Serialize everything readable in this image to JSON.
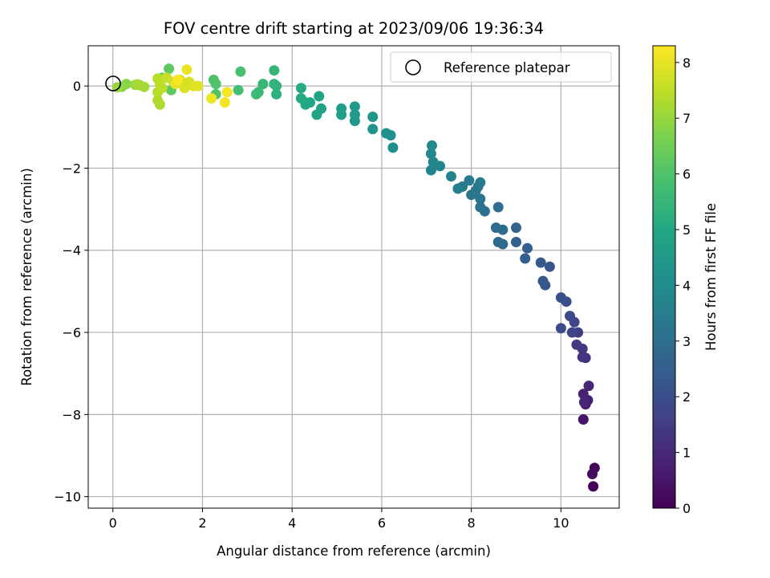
{
  "chart_data": {
    "type": "scatter",
    "title": "FOV centre drift starting at 2023/09/06 19:36:34",
    "xlabel": "Angular distance from reference (arcmin)",
    "ylabel": "Rotation from reference (arcmin)",
    "colorbar_label": "Hours from first FF file",
    "xlim": [
      -0.55,
      11.3
    ],
    "ylim": [
      -10.28,
      0.98
    ],
    "clim": [
      0,
      8.3
    ],
    "x_ticks": [
      0,
      2,
      4,
      6,
      8,
      10
    ],
    "y_ticks": [
      0,
      -2,
      -4,
      -6,
      -8,
      -10
    ],
    "colorbar_ticks": [
      0,
      1,
      2,
      3,
      4,
      5,
      6,
      7,
      8
    ],
    "grid": true,
    "colormap": "viridis",
    "legend": {
      "placement": "top-right",
      "entries": [
        "Reference platepar"
      ]
    },
    "reference_point": {
      "x": 0,
      "y": 0
    },
    "points": [
      [
        10.72,
        -9.75,
        0.05
      ],
      [
        10.75,
        -9.3,
        0.15
      ],
      [
        10.7,
        -9.45,
        0.25
      ],
      [
        10.5,
        -8.12,
        0.5
      ],
      [
        10.55,
        -7.75,
        0.6
      ],
      [
        10.6,
        -7.65,
        0.7
      ],
      [
        10.5,
        -7.5,
        0.8
      ],
      [
        10.62,
        -7.3,
        0.9
      ],
      [
        10.52,
        -7.7,
        0.95
      ],
      [
        10.55,
        -6.62,
        1.2
      ],
      [
        10.48,
        -6.6,
        1.25
      ],
      [
        10.48,
        -6.4,
        1.35
      ],
      [
        10.35,
        -6.3,
        1.45
      ],
      [
        10.38,
        -6.0,
        1.55
      ],
      [
        10.25,
        -6.0,
        1.65
      ],
      [
        10.3,
        -5.75,
        1.75
      ],
      [
        10.2,
        -5.6,
        1.85
      ],
      [
        10.0,
        -5.9,
        1.9
      ],
      [
        10.12,
        -5.25,
        2.0
      ],
      [
        10.0,
        -5.15,
        2.05
      ],
      [
        9.65,
        -4.85,
        2.25
      ],
      [
        9.75,
        -4.4,
        2.3
      ],
      [
        9.6,
        -4.75,
        2.35
      ],
      [
        9.55,
        -4.3,
        2.4
      ],
      [
        9.2,
        -4.2,
        2.5
      ],
      [
        9.25,
        -3.95,
        2.55
      ],
      [
        9.0,
        -3.8,
        2.6
      ],
      [
        9.0,
        -3.45,
        2.65
      ],
      [
        8.7,
        -3.85,
        2.8
      ],
      [
        8.6,
        -3.8,
        2.85
      ],
      [
        8.7,
        -3.5,
        2.9
      ],
      [
        8.55,
        -3.45,
        2.95
      ],
      [
        8.6,
        -2.95,
        3.0
      ],
      [
        8.3,
        -3.05,
        3.05
      ],
      [
        8.2,
        -2.95,
        3.1
      ],
      [
        8.2,
        -2.75,
        3.15
      ],
      [
        8.0,
        -2.65,
        3.2
      ],
      [
        8.1,
        -2.55,
        3.25
      ],
      [
        8.15,
        -2.45,
        3.3
      ],
      [
        8.2,
        -2.35,
        3.35
      ],
      [
        7.95,
        -2.3,
        3.4
      ],
      [
        7.8,
        -2.45,
        3.5
      ],
      [
        7.7,
        -2.5,
        3.55
      ],
      [
        7.55,
        -2.2,
        3.6
      ],
      [
        7.3,
        -1.95,
        3.7
      ],
      [
        7.1,
        -2.05,
        3.75
      ],
      [
        7.15,
        -1.85,
        3.8
      ],
      [
        7.1,
        -1.65,
        3.85
      ],
      [
        7.12,
        -1.45,
        3.9
      ],
      [
        6.25,
        -1.5,
        4.1
      ],
      [
        6.2,
        -1.2,
        4.15
      ],
      [
        6.1,
        -1.15,
        4.2
      ],
      [
        5.8,
        -1.05,
        4.3
      ],
      [
        5.8,
        -0.75,
        4.35
      ],
      [
        5.4,
        -0.85,
        4.45
      ],
      [
        5.4,
        -0.7,
        4.5
      ],
      [
        5.4,
        -0.5,
        4.55
      ],
      [
        5.1,
        -0.55,
        4.6
      ],
      [
        5.1,
        -0.7,
        4.65
      ],
      [
        4.65,
        -0.55,
        4.75
      ],
      [
        4.55,
        -0.7,
        4.8
      ],
      [
        4.6,
        -0.25,
        4.85
      ],
      [
        4.4,
        -0.4,
        4.9
      ],
      [
        4.3,
        -0.4,
        4.95
      ],
      [
        4.3,
        -0.45,
        5.0
      ],
      [
        4.2,
        -0.3,
        5.05
      ],
      [
        4.2,
        -0.05,
        5.1
      ],
      [
        3.65,
        -0.2,
        5.3
      ],
      [
        3.65,
        -0.0,
        5.35
      ],
      [
        3.6,
        0.05,
        5.4
      ],
      [
        3.6,
        0.38,
        5.5
      ],
      [
        3.35,
        0.05,
        5.55
      ],
      [
        3.25,
        -0.15,
        5.6
      ],
      [
        3.2,
        -0.2,
        5.62
      ],
      [
        2.8,
        -0.1,
        5.8
      ],
      [
        2.85,
        0.35,
        5.9
      ],
      [
        2.25,
        0.15,
        5.95
      ],
      [
        2.3,
        0.05,
        6.0
      ],
      [
        2.3,
        -0.2,
        6.05
      ],
      [
        1.3,
        -0.1,
        6.2
      ],
      [
        1.25,
        0.42,
        6.25
      ],
      [
        1.1,
        0.2,
        6.3
      ],
      [
        0.3,
        0.05,
        6.8
      ],
      [
        0.2,
        -0.02,
        6.9
      ],
      [
        0.1,
        -0.03,
        7.0
      ],
      [
        0.5,
        0.03,
        7.05
      ],
      [
        0.6,
        0.02,
        7.1
      ],
      [
        0.7,
        -0.02,
        7.15
      ],
      [
        0.55,
        0.04,
        7.2
      ],
      [
        1.05,
        -0.45,
        7.25
      ],
      [
        1.0,
        -0.35,
        7.3
      ],
      [
        1.0,
        -0.15,
        7.35
      ],
      [
        1.0,
        0.18,
        7.4
      ],
      [
        1.05,
        0.05,
        7.45
      ],
      [
        1.1,
        -0.05,
        7.5
      ],
      [
        1.2,
        0.2,
        7.6
      ],
      [
        1.35,
        0.1,
        7.65
      ],
      [
        1.5,
        0.15,
        7.7
      ],
      [
        1.6,
        0.05,
        7.75
      ],
      [
        1.7,
        0.1,
        7.8
      ],
      [
        1.6,
        -0.05,
        7.85
      ],
      [
        1.8,
        0.0,
        7.9
      ],
      [
        1.9,
        0.0,
        7.95
      ],
      [
        1.4,
        0.05,
        8.0
      ],
      [
        1.65,
        0.4,
        8.05
      ],
      [
        2.2,
        -0.3,
        8.1
      ],
      [
        2.5,
        -0.4,
        8.15
      ],
      [
        2.55,
        -0.15,
        8.2
      ],
      [
        1.45,
        0.15,
        8.25
      ]
    ]
  }
}
